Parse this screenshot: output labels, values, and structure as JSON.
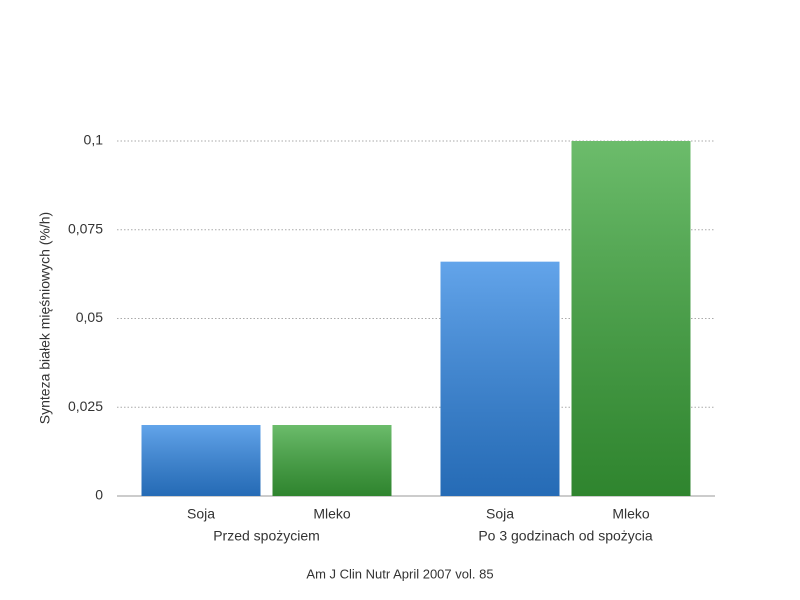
{
  "chart_data": {
    "type": "bar",
    "y_label": "Synteza białek mięśniowych (%/h)",
    "source": "Am J Clin Nutr April 2007 vol. 85",
    "categories": [
      "Przed spożyciem",
      "Po 3 godzinach od spożycia"
    ],
    "series": [
      {
        "name": "Soja",
        "color": "#2f86e3",
        "values": [
          0.02,
          0.066
        ]
      },
      {
        "name": "Mleko",
        "color": "#3ba63a",
        "values": [
          0.02,
          0.1
        ]
      }
    ],
    "ylim": [
      0,
      0.1
    ],
    "yticks": [
      0,
      {
        "value": 0.025,
        "label": "0,025"
      },
      {
        "value": 0.05,
        "label": "0,05"
      },
      {
        "value": 0.075,
        "label": "0,075"
      },
      {
        "value": 0.1,
        "label": "0,1"
      }
    ],
    "grid": true
  }
}
